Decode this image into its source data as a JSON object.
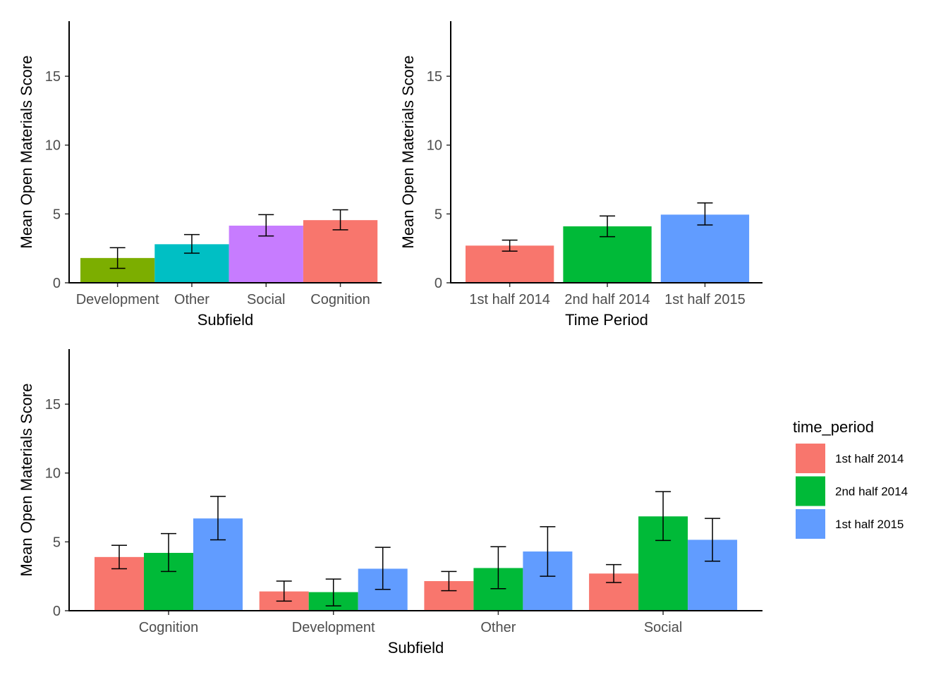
{
  "chart_data": [
    {
      "type": "bar",
      "xlabel": "Subfield",
      "ylabel": "Mean Open Materials Score",
      "ylim": [
        0,
        19
      ],
      "yticks": [
        0,
        5,
        10,
        15
      ],
      "grid": false,
      "categories": [
        "Development",
        "Other",
        "Social",
        "Cognition"
      ],
      "values": [
        1.8,
        2.8,
        4.15,
        4.55
      ],
      "error_low": [
        1.05,
        2.15,
        3.4,
        3.85
      ],
      "error_high": [
        2.55,
        3.5,
        4.95,
        5.3
      ],
      "colors": [
        "#7CAE00",
        "#00BFC4",
        "#C77CFF",
        "#F8766D"
      ]
    },
    {
      "type": "bar",
      "xlabel": "Time Period",
      "ylabel": "Mean Open Materials Score",
      "ylim": [
        0,
        19
      ],
      "yticks": [
        0,
        5,
        10,
        15
      ],
      "grid": false,
      "categories": [
        "1st half 2014",
        "2nd half 2014",
        "1st half 2015"
      ],
      "values": [
        2.7,
        4.1,
        4.95
      ],
      "error_low": [
        2.3,
        3.35,
        4.2
      ],
      "error_high": [
        3.1,
        4.85,
        5.8
      ],
      "colors": [
        "#F8766D",
        "#00BA38",
        "#619CFF"
      ]
    },
    {
      "type": "bar",
      "xlabel": "Subfield",
      "ylabel": "Mean Open Materials Score",
      "ylim": [
        0,
        19
      ],
      "yticks": [
        0,
        5,
        10,
        15
      ],
      "grid": false,
      "categories": [
        "Cognition",
        "Development",
        "Other",
        "Social"
      ],
      "legend_title": "time_period",
      "legend_position": "right",
      "series": [
        {
          "name": "1st half 2014",
          "color": "#F8766D",
          "values": [
            3.9,
            1.4,
            2.15,
            2.7
          ],
          "error_low": [
            3.05,
            0.7,
            1.45,
            2.05
          ],
          "error_high": [
            4.75,
            2.15,
            2.85,
            3.35
          ]
        },
        {
          "name": "2nd half 2014",
          "color": "#00BA38",
          "values": [
            4.2,
            1.35,
            3.1,
            6.85
          ],
          "error_low": [
            2.85,
            0.35,
            1.6,
            5.1
          ],
          "error_high": [
            5.6,
            2.3,
            4.65,
            8.65
          ]
        },
        {
          "name": "1st half 2015",
          "color": "#619CFF",
          "values": [
            6.7,
            3.05,
            4.3,
            5.15
          ],
          "error_low": [
            5.15,
            1.55,
            2.5,
            3.6
          ],
          "error_high": [
            8.3,
            4.6,
            6.1,
            6.7
          ]
        }
      ]
    }
  ]
}
